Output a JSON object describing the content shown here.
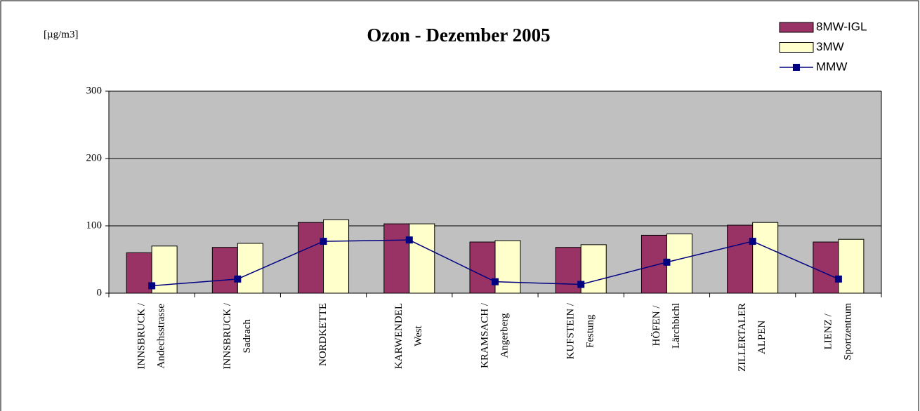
{
  "chart_data": {
    "type": "bar",
    "title": "Ozon - Dezember 2005",
    "unit_label": "[µg/m3]",
    "categories": [
      [
        "INNSBRUCK /",
        "Andechsstrasse"
      ],
      [
        "INNSBRUCK /",
        "Sadrach"
      ],
      [
        "NORDKETTE"
      ],
      [
        "KARWENDEL",
        "West"
      ],
      [
        "KRAMSACH /",
        "Angerberg"
      ],
      [
        "KUFSTEIN /",
        "Festung"
      ],
      [
        "HÖFEN /",
        "Lärchbichl"
      ],
      [
        "ZILLERTALER",
        "ALPEN"
      ],
      [
        "LIENZ /",
        "Sportzentrum"
      ]
    ],
    "series": [
      {
        "name": "8MW-IGL",
        "type": "bar",
        "color": "#993366",
        "values": [
          60,
          68,
          105,
          103,
          76,
          68,
          86,
          101,
          76
        ]
      },
      {
        "name": "3MW",
        "type": "bar",
        "color": "#ffffcc",
        "values": [
          70,
          74,
          109,
          103,
          78,
          72,
          88,
          105,
          80
        ]
      },
      {
        "name": "MMW",
        "type": "line",
        "color": "#000080",
        "values": [
          11,
          21,
          77,
          79,
          17,
          13,
          46,
          77,
          21
        ]
      }
    ],
    "ylim": [
      0,
      300
    ],
    "yticks": [
      0,
      100,
      200,
      300
    ],
    "grid": true,
    "legend": "top-right",
    "plot_background": "#c0c0c0"
  }
}
